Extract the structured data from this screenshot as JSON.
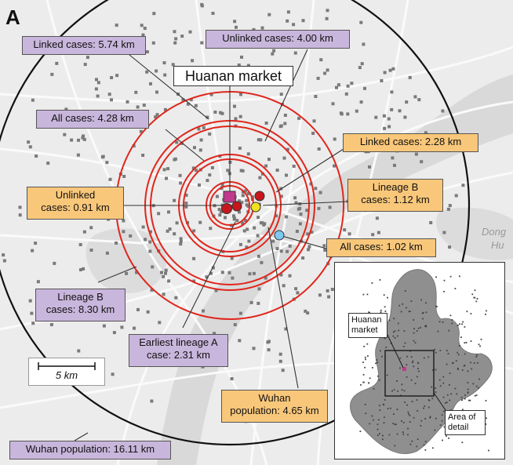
{
  "panel_letter": "A",
  "market_title": "Huanan market",
  "scale_label": "5 km",
  "map_place_labels": [
    "Dong",
    "Hu"
  ],
  "labels": [
    {
      "id": "linked-574",
      "text": "Linked cases: 5.74 km",
      "kind": "purple"
    },
    {
      "id": "unlinked-400",
      "text": "Unlinked cases: 4.00 km",
      "kind": "purple"
    },
    {
      "id": "all-428",
      "text": "All cases: 4.28 km",
      "kind": "purple"
    },
    {
      "id": "linked-228",
      "text": "Linked cases: 2.28 km",
      "kind": "orange"
    },
    {
      "id": "unlinked-091",
      "text": "Unlinked\ncases: 0.91 km",
      "kind": "orange"
    },
    {
      "id": "lineageb-112",
      "text": "Lineage B\ncases: 1.12 km",
      "kind": "orange"
    },
    {
      "id": "all-102",
      "text": "All cases: 1.02 km",
      "kind": "orange"
    },
    {
      "id": "lineageb-830",
      "text": "Lineage B\ncases: 8.30 km",
      "kind": "purple"
    },
    {
      "id": "lineagea-231",
      "text": "Earliest lineage A\ncase: 2.31 km",
      "kind": "purple"
    },
    {
      "id": "wuhan-465",
      "text": "Wuhan\npopulation: 4.65 km",
      "kind": "orange"
    },
    {
      "id": "wuhan-1611",
      "text": "Wuhan population: 16.11 km",
      "kind": "purple"
    }
  ],
  "inset": {
    "market_label": "Huanan\nmarket",
    "detail_label": "Area of\ndetail"
  },
  "colors": {
    "purple_label": "#c9b6dc",
    "orange_label": "#f9c77a",
    "circle": "#e0261c",
    "market": "#c23a8c",
    "case_dots": "#7a7a7a"
  }
}
